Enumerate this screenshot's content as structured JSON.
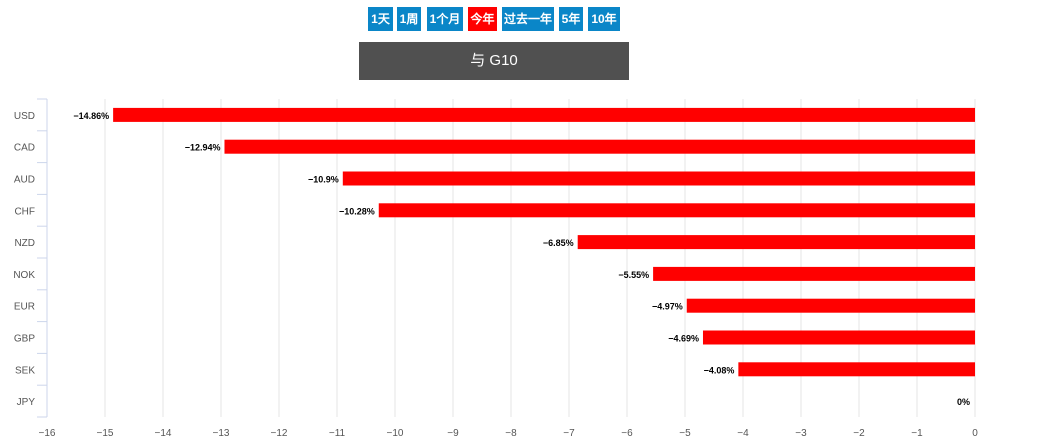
{
  "periods": [
    {
      "label": "1天"
    },
    {
      "label": "1周"
    },
    {
      "label": "1个月"
    },
    {
      "label": "今年",
      "active": true
    },
    {
      "label": "过去一年"
    },
    {
      "label": "5年"
    },
    {
      "label": "10年"
    }
  ],
  "compare_label": "与 G10",
  "colors": {
    "bar": "#ff0000",
    "button": "#0a86c8",
    "active": "#ff0000",
    "header": "#505050"
  },
  "chart_data": {
    "type": "bar",
    "orientation": "horizontal",
    "categories": [
      "USD",
      "CAD",
      "AUD",
      "CHF",
      "NZD",
      "NOK",
      "EUR",
      "GBP",
      "SEK",
      "JPY"
    ],
    "values": [
      -14.86,
      -12.94,
      -10.9,
      -10.28,
      -6.85,
      -5.55,
      -4.97,
      -4.69,
      -4.08,
      0
    ],
    "labels": [
      "−14.86%",
      "−12.94%",
      "−10.9%",
      "−10.28%",
      "−6.85%",
      "−5.55%",
      "−4.97%",
      "−4.69%",
      "−4.08%",
      "0%"
    ],
    "xlim": [
      -16,
      0
    ],
    "xticks": [
      "−16",
      "−15",
      "−14",
      "−13",
      "−12",
      "−11",
      "−10",
      "−9",
      "−8",
      "−7",
      "−6",
      "−5",
      "−4",
      "−3",
      "−2",
      "−1",
      "0"
    ],
    "grid": true
  }
}
